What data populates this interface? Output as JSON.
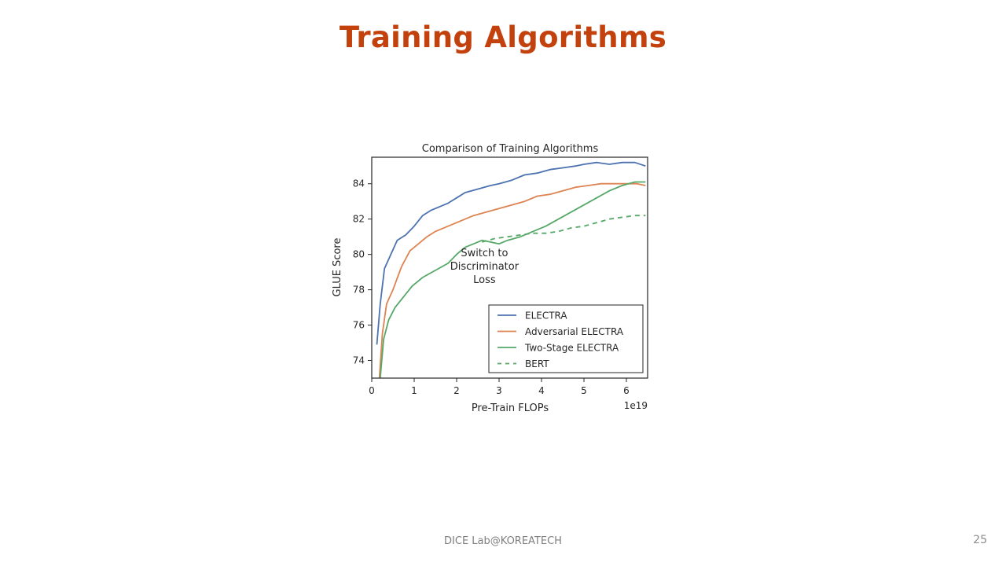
{
  "slide": {
    "title": "Training Algorithms",
    "footer": "DICE  Lab@KOREATECH",
    "page_number": "25"
  },
  "chart_data": {
    "type": "line",
    "title": "Comparison of Training Algorithms",
    "xlabel": "Pre-Train FLOPs",
    "x_multiplier": "1e19",
    "ylabel": "GLUE Score",
    "xlim": [
      0,
      6.5
    ],
    "ylim": [
      73,
      85.5
    ],
    "xticks": [
      0,
      1,
      2,
      3,
      4,
      5,
      6
    ],
    "yticks": [
      74,
      76,
      78,
      80,
      82,
      84
    ],
    "grid": false,
    "legend_position": "lower-right",
    "annotation": {
      "lines": [
        "Switch to",
        "Discriminator",
        "Loss"
      ],
      "x": 2.6,
      "y": 79.9
    },
    "series": [
      {
        "name": "ELECTRA",
        "color": "#4c72b0",
        "style": "solid",
        "points": [
          [
            0.12,
            74.9
          ],
          [
            0.2,
            77.2
          ],
          [
            0.3,
            79.2
          ],
          [
            0.45,
            80.0
          ],
          [
            0.6,
            80.8
          ],
          [
            0.8,
            81.1
          ],
          [
            1.0,
            81.6
          ],
          [
            1.2,
            82.2
          ],
          [
            1.4,
            82.5
          ],
          [
            1.6,
            82.7
          ],
          [
            1.8,
            82.9
          ],
          [
            2.0,
            83.2
          ],
          [
            2.2,
            83.5
          ],
          [
            2.5,
            83.7
          ],
          [
            2.8,
            83.9
          ],
          [
            3.0,
            84.0
          ],
          [
            3.3,
            84.2
          ],
          [
            3.6,
            84.5
          ],
          [
            3.9,
            84.6
          ],
          [
            4.2,
            84.8
          ],
          [
            4.5,
            84.9
          ],
          [
            4.8,
            85.0
          ],
          [
            5.0,
            85.1
          ],
          [
            5.3,
            85.2
          ],
          [
            5.6,
            85.1
          ],
          [
            5.9,
            85.2
          ],
          [
            6.2,
            85.2
          ],
          [
            6.45,
            85.0
          ]
        ]
      },
      {
        "name": "Adversarial ELECTRA",
        "color": "#dd8452",
        "style": "solid",
        "points": [
          [
            0.18,
            73.0
          ],
          [
            0.25,
            75.5
          ],
          [
            0.35,
            77.2
          ],
          [
            0.5,
            78.0
          ],
          [
            0.7,
            79.3
          ],
          [
            0.9,
            80.2
          ],
          [
            1.1,
            80.6
          ],
          [
            1.3,
            81.0
          ],
          [
            1.5,
            81.3
          ],
          [
            1.8,
            81.6
          ],
          [
            2.1,
            81.9
          ],
          [
            2.4,
            82.2
          ],
          [
            2.7,
            82.4
          ],
          [
            3.0,
            82.6
          ],
          [
            3.3,
            82.8
          ],
          [
            3.6,
            83.0
          ],
          [
            3.9,
            83.3
          ],
          [
            4.2,
            83.4
          ],
          [
            4.5,
            83.6
          ],
          [
            4.8,
            83.8
          ],
          [
            5.1,
            83.9
          ],
          [
            5.4,
            84.0
          ],
          [
            5.7,
            84.0
          ],
          [
            6.0,
            84.0
          ],
          [
            6.25,
            84.0
          ],
          [
            6.45,
            83.9
          ]
        ]
      },
      {
        "name": "Two-Stage ELECTRA",
        "color": "#55a868",
        "style": "solid",
        "points": [
          [
            0.2,
            73.0
          ],
          [
            0.28,
            75.2
          ],
          [
            0.4,
            76.3
          ],
          [
            0.55,
            77.0
          ],
          [
            0.75,
            77.6
          ],
          [
            0.95,
            78.2
          ],
          [
            1.2,
            78.7
          ],
          [
            1.5,
            79.1
          ],
          [
            1.8,
            79.5
          ],
          [
            2.0,
            80.0
          ],
          [
            2.2,
            80.4
          ],
          [
            2.4,
            80.6
          ],
          [
            2.6,
            80.8
          ],
          [
            2.8,
            80.7
          ],
          [
            3.0,
            80.6
          ],
          [
            3.2,
            80.8
          ],
          [
            3.5,
            81.0
          ],
          [
            3.8,
            81.3
          ],
          [
            4.1,
            81.6
          ],
          [
            4.4,
            82.0
          ],
          [
            4.7,
            82.4
          ],
          [
            5.0,
            82.8
          ],
          [
            5.3,
            83.2
          ],
          [
            5.6,
            83.6
          ],
          [
            5.9,
            83.9
          ],
          [
            6.2,
            84.1
          ],
          [
            6.45,
            84.1
          ]
        ]
      },
      {
        "name": "BERT",
        "color": "#55a868",
        "style": "dashed",
        "points": [
          [
            2.6,
            80.7
          ],
          [
            2.9,
            80.9
          ],
          [
            3.2,
            81.0
          ],
          [
            3.5,
            81.1
          ],
          [
            3.8,
            81.2
          ],
          [
            4.1,
            81.2
          ],
          [
            4.4,
            81.3
          ],
          [
            4.7,
            81.5
          ],
          [
            5.0,
            81.6
          ],
          [
            5.3,
            81.8
          ],
          [
            5.6,
            82.0
          ],
          [
            5.9,
            82.1
          ],
          [
            6.2,
            82.2
          ],
          [
            6.45,
            82.2
          ]
        ]
      }
    ]
  }
}
